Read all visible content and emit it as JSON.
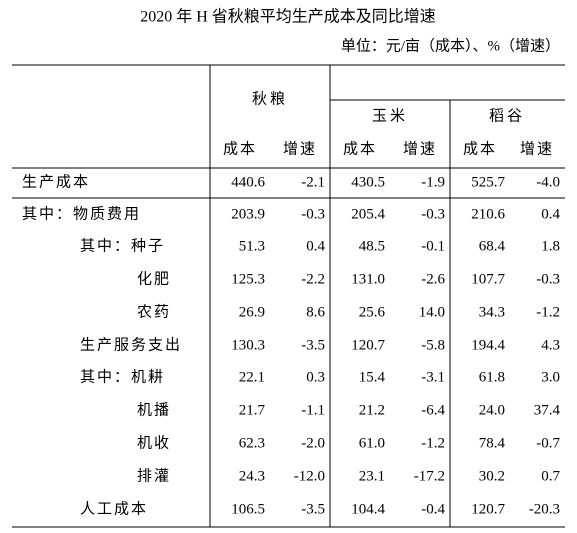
{
  "title": "2020 年 H 省秋粮平均生产成本及同比增速",
  "unit": "单位：元/亩（成本）、%（增速）",
  "table": {
    "groups": [
      "秋粮",
      "玉米",
      "稻谷"
    ],
    "subheaders": [
      "成本",
      "增速",
      "成本",
      "增速",
      "成本",
      "增速"
    ],
    "rows": [
      [
        "生产成本",
        "440.6",
        "-2.1",
        "430.5",
        "-1.9",
        "525.7",
        "-4.0"
      ],
      [
        "其中：物质费用",
        "203.9",
        "-0.3",
        "205.4",
        "-0.3",
        "210.6",
        "0.4"
      ],
      [
        "其中：种子",
        "51.3",
        "0.4",
        "48.5",
        "-0.1",
        "68.4",
        "1.8"
      ],
      [
        "化肥",
        "125.3",
        "-2.2",
        "131.0",
        "-2.6",
        "107.7",
        "-0.3"
      ],
      [
        "农药",
        "26.9",
        "8.6",
        "25.6",
        "14.0",
        "34.3",
        "-1.2"
      ],
      [
        "生产服务支出",
        "130.3",
        "-3.5",
        "120.7",
        "-5.8",
        "194.4",
        "4.3"
      ],
      [
        "其中：机耕",
        "22.1",
        "0.3",
        "15.4",
        "-3.1",
        "61.8",
        "3.0"
      ],
      [
        "机播",
        "21.7",
        "-1.1",
        "21.2",
        "-6.4",
        "24.0",
        "37.4"
      ],
      [
        "机收",
        "62.3",
        "-2.0",
        "61.0",
        "-1.2",
        "78.4",
        "-0.7"
      ],
      [
        "排灌",
        "24.3",
        "-12.0",
        "23.1",
        "-17.2",
        "30.2",
        "0.7"
      ],
      [
        "人工成本",
        "106.5",
        "-3.5",
        "104.4",
        "-0.4",
        "120.7",
        "-20.3"
      ]
    ]
  }
}
